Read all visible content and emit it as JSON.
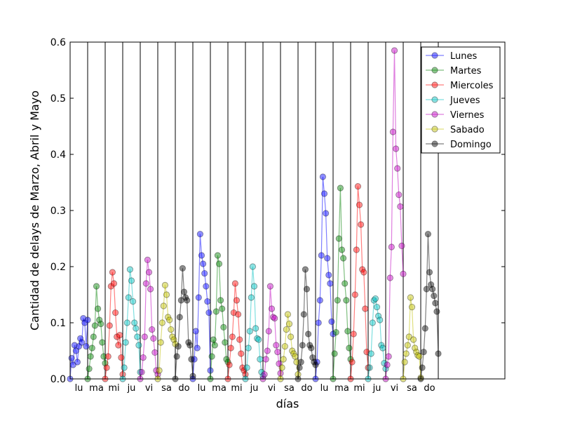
{
  "chart_data": {
    "type": "line",
    "title": "",
    "xlabel": "días",
    "ylabel": "Cantidad de delays de Marzo, Abril y Mayo",
    "ylim": [
      0,
      0.6
    ],
    "yticks": [
      "0.0",
      "0.1",
      "0.2",
      "0.3",
      "0.4",
      "0.5",
      "0.6"
    ],
    "xcategories": [
      "lu",
      "ma",
      "mi",
      "ju",
      "vi",
      "sa",
      "do",
      "lu",
      "ma",
      "mi",
      "ju",
      "vi",
      "sa",
      "do",
      "lu",
      "ma",
      "mi",
      "ju",
      "vi",
      "sa",
      "do"
    ],
    "legend_position": "top-right",
    "grid": false,
    "series": [
      {
        "name": "Lunes",
        "color": "#0000ff",
        "groups": [
          [
            0.0,
            0.037,
            0.025,
            0.06,
            0.05,
            0.03,
            0.058,
            0.072,
            0.065,
            0.108,
            0.1,
            0.058,
            0.105
          ],
          [
            0.0,
            0.035,
            0.085,
            0.055,
            0.145,
            0.258,
            0.22,
            0.205,
            0.188,
            0.165,
            0.138,
            0.118,
            0.015
          ],
          [
            0.0,
            0.03,
            0.1,
            0.14,
            0.22,
            0.36,
            0.33,
            0.295,
            0.215,
            0.185,
            0.17,
            0.102,
            0.08
          ]
        ]
      },
      {
        "name": "Martes",
        "color": "#008000",
        "groups": [
          [
            0.0,
            0.018,
            0.04,
            0.055,
            0.075,
            0.095,
            0.165,
            0.125,
            0.105,
            0.098,
            0.065,
            0.04,
            0.028
          ],
          [
            0.0,
            0.04,
            0.07,
            0.06,
            0.12,
            0.22,
            0.205,
            0.14,
            0.125,
            0.092,
            0.065,
            0.035,
            0.03
          ],
          [
            0.0,
            0.045,
            0.083,
            0.14,
            0.25,
            0.34,
            0.23,
            0.215,
            0.17,
            0.14,
            0.085,
            0.055,
            0.035
          ]
        ]
      },
      {
        "name": "Miercoles",
        "color": "#ff0000",
        "groups": [
          [
            0.0,
            0.02,
            0.04,
            0.095,
            0.165,
            0.19,
            0.17,
            0.118,
            0.075,
            0.06,
            0.078,
            0.038,
            0.008
          ],
          [
            0.0,
            0.025,
            0.055,
            0.075,
            0.118,
            0.17,
            0.14,
            0.115,
            0.07,
            0.045,
            0.02,
            0.015,
            0.008
          ],
          [
            0.0,
            0.03,
            0.08,
            0.15,
            0.23,
            0.343,
            0.31,
            0.275,
            0.195,
            0.19,
            0.125,
            0.048,
            0.02
          ]
        ]
      },
      {
        "name": "Jueves",
        "color": "#00bfbf",
        "groups": [
          [
            0.0,
            0.02,
            0.065,
            0.1,
            0.145,
            0.195,
            0.175,
            0.138,
            0.1,
            0.09,
            0.075,
            0.06,
            0.012
          ],
          [
            0.0,
            0.02,
            0.055,
            0.085,
            0.145,
            0.2,
            0.165,
            0.09,
            0.072,
            0.07,
            0.035,
            0.012,
            0.005
          ],
          [
            0.0,
            0.02,
            0.045,
            0.1,
            0.14,
            0.143,
            0.128,
            0.112,
            0.105,
            0.06,
            0.055,
            0.028,
            0.018
          ]
        ]
      },
      {
        "name": "Viernes",
        "color": "#bf00bf",
        "groups": [
          [
            0.0,
            0.012,
            0.038,
            0.075,
            0.17,
            0.212,
            0.19,
            0.16,
            0.088,
            0.072,
            0.047,
            0.015,
            0.008
          ],
          [
            0.0,
            0.008,
            0.035,
            0.05,
            0.085,
            0.165,
            0.125,
            0.11,
            0.108,
            0.06,
            0.048,
            0.027,
            0.01
          ],
          [
            0.0,
            0.025,
            0.04,
            0.18,
            0.235,
            0.44,
            0.585,
            0.41,
            0.375,
            0.328,
            0.307,
            0.237,
            0.187
          ]
        ]
      },
      {
        "name": "Sabado",
        "color": "#bfbf00",
        "groups": [
          [
            0.0,
            0.015,
            0.065,
            0.1,
            0.13,
            0.167,
            0.15,
            0.11,
            0.105,
            0.088,
            0.075,
            0.07,
            0.062
          ],
          [
            0.0,
            0.02,
            0.035,
            0.058,
            0.088,
            0.115,
            0.098,
            0.075,
            0.05,
            0.045,
            0.04,
            0.03,
            0.008
          ],
          [
            0.0,
            0.03,
            0.045,
            0.06,
            0.075,
            0.145,
            0.128,
            0.07,
            0.055,
            0.048,
            0.042,
            0.04,
            0.002
          ]
        ]
      },
      {
        "name": "Domingo",
        "color": "#000000",
        "groups": [
          [
            0.0,
            0.04,
            0.058,
            0.11,
            0.14,
            0.197,
            0.155,
            0.145,
            0.14,
            0.065,
            0.06,
            0.035,
            0.005
          ],
          [
            0.0,
            0.02,
            0.03,
            0.06,
            0.115,
            0.195,
            0.16,
            0.08,
            0.06,
            0.055,
            0.038,
            0.03,
            0.025
          ],
          [
            0.0,
            0.02,
            0.048,
            0.09,
            0.16,
            0.258,
            0.19,
            0.168,
            0.16,
            0.148,
            0.135,
            0.12,
            0.045
          ]
        ]
      }
    ]
  }
}
